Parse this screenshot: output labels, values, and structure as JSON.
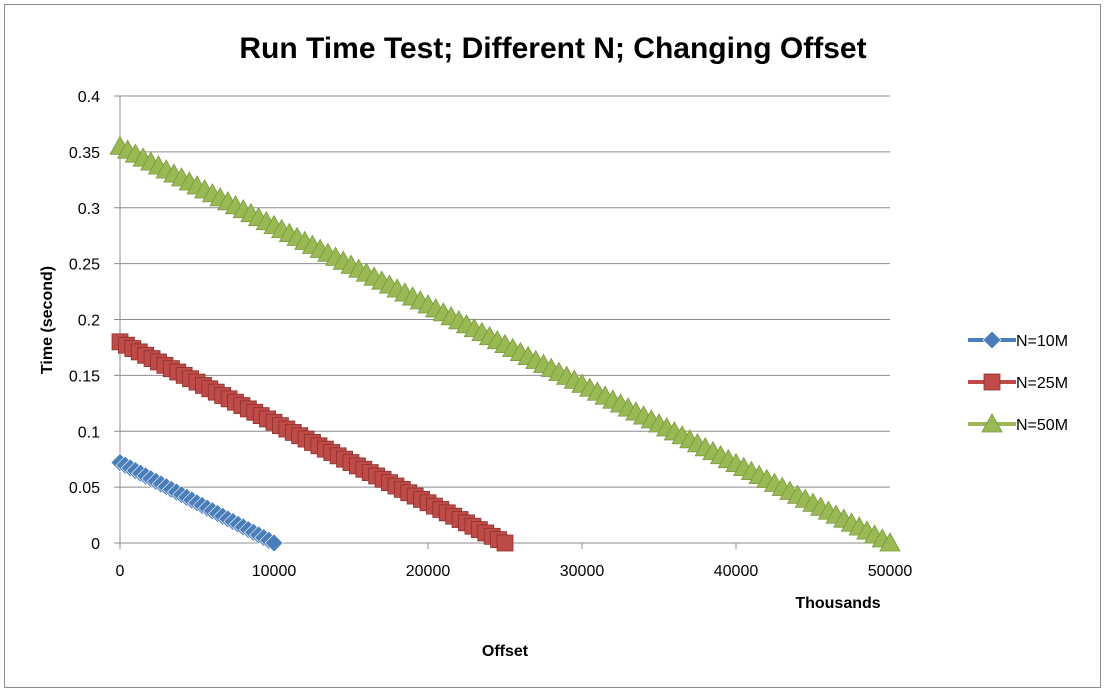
{
  "chart_data": {
    "type": "line",
    "title": "Run Time Test; Different N; Changing Offset",
    "xlabel": "Offset",
    "x_unit_label": "Thousands",
    "ylabel": "Time (second)",
    "xlim": [
      0,
      50000
    ],
    "ylim": [
      0,
      0.4
    ],
    "x_ticks": [
      "0",
      "10000",
      "20000",
      "30000",
      "40000",
      "50000"
    ],
    "y_ticks": [
      "0",
      "0.05",
      "0.1",
      "0.15",
      "0.2",
      "0.25",
      "0.3",
      "0.35",
      "0.4"
    ],
    "grid": "horizontal",
    "legend_position": "right",
    "series": [
      {
        "name": "N=10M",
        "color": "#4a7ebb",
        "marker": "diamond",
        "start": [
          0,
          0.072
        ],
        "end": [
          10000,
          0.0
        ],
        "points": 30
      },
      {
        "name": "N=25M",
        "color": "#be4b48",
        "marker": "square",
        "start": [
          0,
          0.18
        ],
        "end": [
          25000,
          0.0
        ],
        "points": 60
      },
      {
        "name": "N=50M",
        "color": "#98b954",
        "marker": "triangle",
        "start": [
          0,
          0.355
        ],
        "end": [
          50000,
          0.0
        ],
        "points": 100
      }
    ]
  }
}
